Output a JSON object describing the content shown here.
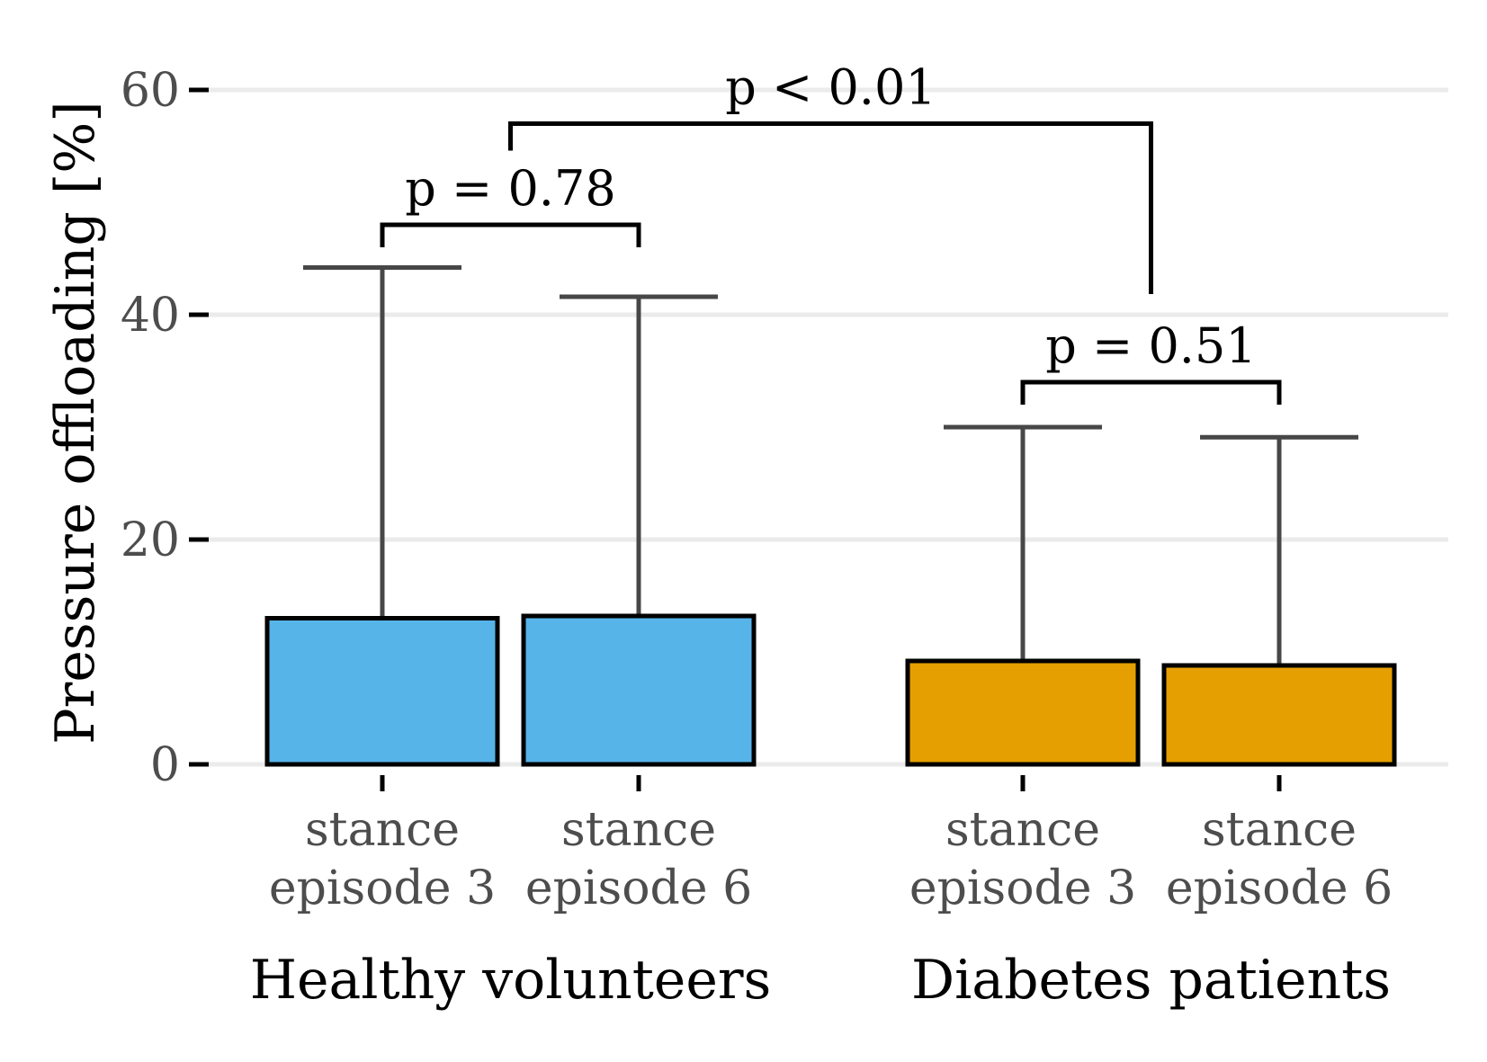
{
  "chart_data": {
    "type": "bar",
    "ylabel": "Pressure offloading [%]",
    "ylim": [
      0,
      63
    ],
    "yticks": [
      0,
      20,
      40,
      60
    ],
    "grid": true,
    "groups": [
      {
        "name": "Healthy volunteers",
        "color": "#56B4E9",
        "bars": [
          {
            "label": [
              "stance",
              "episode 3"
            ],
            "value": 13.0,
            "upper": 44.2
          },
          {
            "label": [
              "stance",
              "episode 6"
            ],
            "value": 13.2,
            "upper": 41.6
          }
        ]
      },
      {
        "name": "Diabetes patients",
        "color": "#E69F00",
        "bars": [
          {
            "label": [
              "stance",
              "episode 3"
            ],
            "value": 9.2,
            "upper": 30.0
          },
          {
            "label": [
              "stance",
              "episode 6"
            ],
            "value": 8.8,
            "upper": 29.1
          }
        ]
      }
    ],
    "annotations": [
      {
        "text": "p = 0.78",
        "between": [
          [
            0,
            0
          ],
          [
            0,
            1
          ]
        ],
        "level": 48.0
      },
      {
        "text": "p = 0.51",
        "between": [
          [
            1,
            0
          ],
          [
            1,
            1
          ]
        ],
        "level": 34.0
      },
      {
        "text": "p < 0.01",
        "between": [
          "group0",
          "group1"
        ],
        "level": 57.0
      }
    ]
  }
}
